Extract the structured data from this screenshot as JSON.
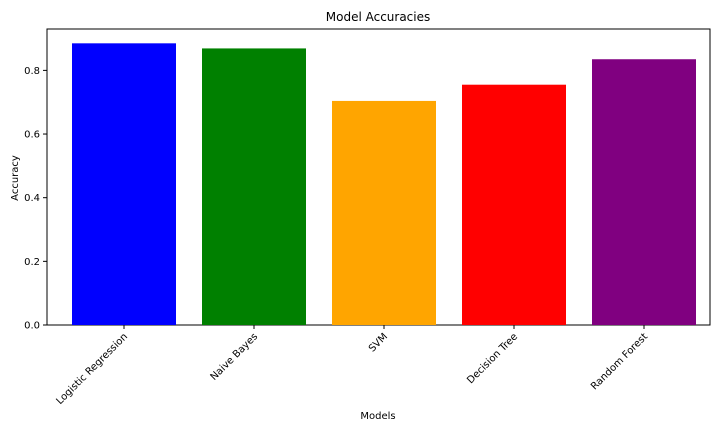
{
  "chart_data": {
    "type": "bar",
    "title": "Model Accuracies",
    "xlabel": "Models",
    "ylabel": "Accuracy",
    "categories": [
      "Logistic Regression",
      "Naive Bayes",
      "SVM",
      "Decision Tree",
      "Random Forest"
    ],
    "values": [
      0.885,
      0.869,
      0.704,
      0.755,
      0.835
    ],
    "colors": [
      "#0000ff",
      "#008000",
      "#ffa500",
      "#ff0000",
      "#800080"
    ],
    "ylim": [
      0,
      0.93
    ],
    "yticks": [
      0.0,
      0.2,
      0.4,
      0.6,
      0.8
    ],
    "ytick_labels": [
      "0.0",
      "0.2",
      "0.4",
      "0.6",
      "0.8"
    ],
    "xtick_rotation_deg": 45,
    "grid": false,
    "legend": "none"
  }
}
